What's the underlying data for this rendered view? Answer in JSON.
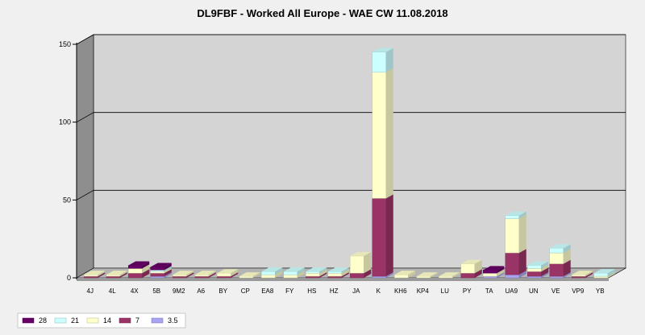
{
  "chart_data": {
    "type": "bar",
    "stacked": true,
    "three_d": true,
    "title": "DL9FBF - Worked All Europe - WAE CW 11.08.2018",
    "xlabel": "",
    "ylabel": "",
    "ylim": [
      0,
      150
    ],
    "yticks": [
      0,
      50,
      100,
      150
    ],
    "grid": true,
    "legend_position": "bottom-left",
    "categories": [
      "4J",
      "4L",
      "4X",
      "5B",
      "9M2",
      "A6",
      "BY",
      "CP",
      "EA8",
      "FY",
      "HS",
      "HZ",
      "JA",
      "K",
      "KH6",
      "KP4",
      "LU",
      "PY",
      "TA",
      "UA9",
      "UN",
      "VE",
      "VP9",
      "YB"
    ],
    "series": [
      {
        "name": "3.5",
        "color": "#a9a4f2",
        "values": [
          0,
          0,
          0,
          1,
          0,
          0,
          0,
          0,
          0,
          0,
          0,
          0,
          0,
          1,
          0,
          0,
          0,
          0,
          1,
          2,
          1,
          1,
          0,
          0
        ]
      },
      {
        "name": "7",
        "color": "#9b3466",
        "values": [
          1,
          1,
          3,
          2,
          1,
          1,
          1,
          0,
          0,
          0,
          1,
          1,
          3,
          50,
          0,
          0,
          0,
          3,
          0,
          14,
          3,
          8,
          1,
          0
        ]
      },
      {
        "name": "14",
        "color": "#ffffcc",
        "values": [
          1,
          1,
          3,
          1,
          1,
          1,
          2,
          1,
          2,
          2,
          2,
          2,
          11,
          81,
          2,
          1,
          1,
          6,
          2,
          22,
          2,
          7,
          1,
          1
        ]
      },
      {
        "name": "21",
        "color": "#ccffff",
        "values": [
          0,
          0,
          0,
          1,
          0,
          0,
          0,
          0,
          2,
          2,
          1,
          1,
          0,
          13,
          0,
          0,
          0,
          0,
          0,
          2,
          2,
          3,
          0,
          2
        ]
      },
      {
        "name": "28",
        "color": "#660066",
        "values": [
          0,
          0,
          2,
          2,
          0,
          0,
          0,
          0,
          0,
          0,
          0,
          0,
          0,
          0,
          0,
          0,
          0,
          0,
          2,
          0,
          0,
          0,
          0,
          0
        ]
      }
    ],
    "legend_order": [
      "28",
      "21",
      "14",
      "7",
      "3.5"
    ],
    "colors": {
      "background": "#f0f0f0",
      "plot_wall": "#d4d4d4",
      "side_wall": "#8e8e8e",
      "floor": "#b4b4b4",
      "gridline": "#000000"
    }
  }
}
